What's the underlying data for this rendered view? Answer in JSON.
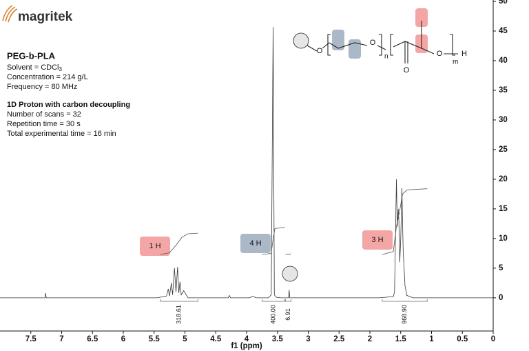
{
  "brand": {
    "logo": "magritek"
  },
  "info": {
    "sample": "PEG-b-PLA",
    "solvent": "Solvent = CDCl",
    "solvent_subscript": "3",
    "concentration": "Concentration = 214 g/L",
    "frequency": "Frequency = 80 MHz",
    "experiment": "1D Proton with carbon decoupling",
    "scans": "Number of scans = 32",
    "repetition": "Repetition time = 30 s",
    "total_time": "Total experimental time = 16 min"
  },
  "structure": {
    "atoms": [
      "O",
      "O",
      "O",
      "O",
      "H"
    ],
    "subscripts": [
      "n",
      "m"
    ]
  },
  "chart_data": {
    "type": "line",
    "xlabel": "f1 (ppm)",
    "xlim": [
      8.0,
      0.0
    ],
    "xticks": [
      7.5,
      7.0,
      6.5,
      6.0,
      5.5,
      5.0,
      4.5,
      4.0,
      3.5,
      3.0,
      2.5,
      2.0,
      1.5,
      1.0,
      0.5,
      0.0
    ],
    "ylim": [
      -5.6,
      50
    ],
    "yticks": [
      0,
      5,
      10,
      15,
      20,
      25,
      30,
      35,
      40,
      45,
      50
    ],
    "series": [
      {
        "color": "#333333",
        "x": [
          8.0,
          7.27,
          7.26,
          7.25,
          5.45,
          5.3,
          5.27,
          5.25,
          5.22,
          5.2,
          5.17,
          5.145,
          5.12,
          5.1,
          5.08,
          5.06,
          5.02,
          4.95,
          4.3,
          4.28,
          4.26,
          3.95,
          3.9,
          3.85,
          3.65,
          3.6,
          3.57,
          3.55,
          3.52,
          3.45,
          3.32,
          3.31,
          3.3,
          1.85,
          1.62,
          1.6,
          1.58,
          1.57,
          1.555,
          1.54,
          1.53,
          1.515,
          1.5,
          1.48,
          1.46,
          1.43,
          1.4,
          1.3,
          0
        ],
        "values": [
          0,
          0,
          0.8,
          0,
          0,
          0.3,
          1.5,
          0.3,
          2.5,
          0.5,
          5,
          1,
          5.2,
          0.8,
          2.7,
          0.5,
          1.2,
          0,
          0,
          0.4,
          0,
          0,
          0.3,
          0,
          0,
          0.5,
          45.7,
          0.5,
          0.1,
          0,
          0,
          1.3,
          0,
          0,
          0.2,
          1,
          13.5,
          20,
          12,
          15,
          13,
          6,
          10,
          18.5,
          8,
          2,
          0.4,
          0,
          0
        ]
      }
    ],
    "integrals": {
      "ranges": [
        [
          5.4,
          4.79
        ],
        [
          3.75,
          3.38
        ],
        [
          3.37,
          3.28
        ],
        [
          1.8,
          1.07
        ]
      ],
      "values": [
        318.61,
        400,
        6.91,
        968.9
      ],
      "value_labels": [
        "318.61",
        "400.00",
        "6.91",
        "968.90"
      ],
      "curves": [
        {
          "x": [
            5.4,
            5.25,
            5.15,
            5.05,
            4.95,
            4.79
          ],
          "values": [
            7.3,
            7.6,
            8.8,
            10.2,
            10.8,
            10.9
          ]
        },
        {
          "x": [
            3.75,
            3.6,
            3.57,
            3.54,
            3.38
          ],
          "values": [
            7.3,
            7.5,
            10,
            11.7,
            11.9
          ]
        },
        {
          "x": [
            3.37,
            3.28
          ],
          "values": [
            7.3,
            7.4
          ]
        },
        {
          "x": [
            1.8,
            1.62,
            1.57,
            1.52,
            1.47,
            1.4,
            1.07
          ],
          "values": [
            7.3,
            7.8,
            12,
            14.5,
            17.5,
            18.2,
            18.4
          ]
        }
      ]
    },
    "annotations": [
      "1 H",
      "4 H",
      "3 H"
    ]
  }
}
